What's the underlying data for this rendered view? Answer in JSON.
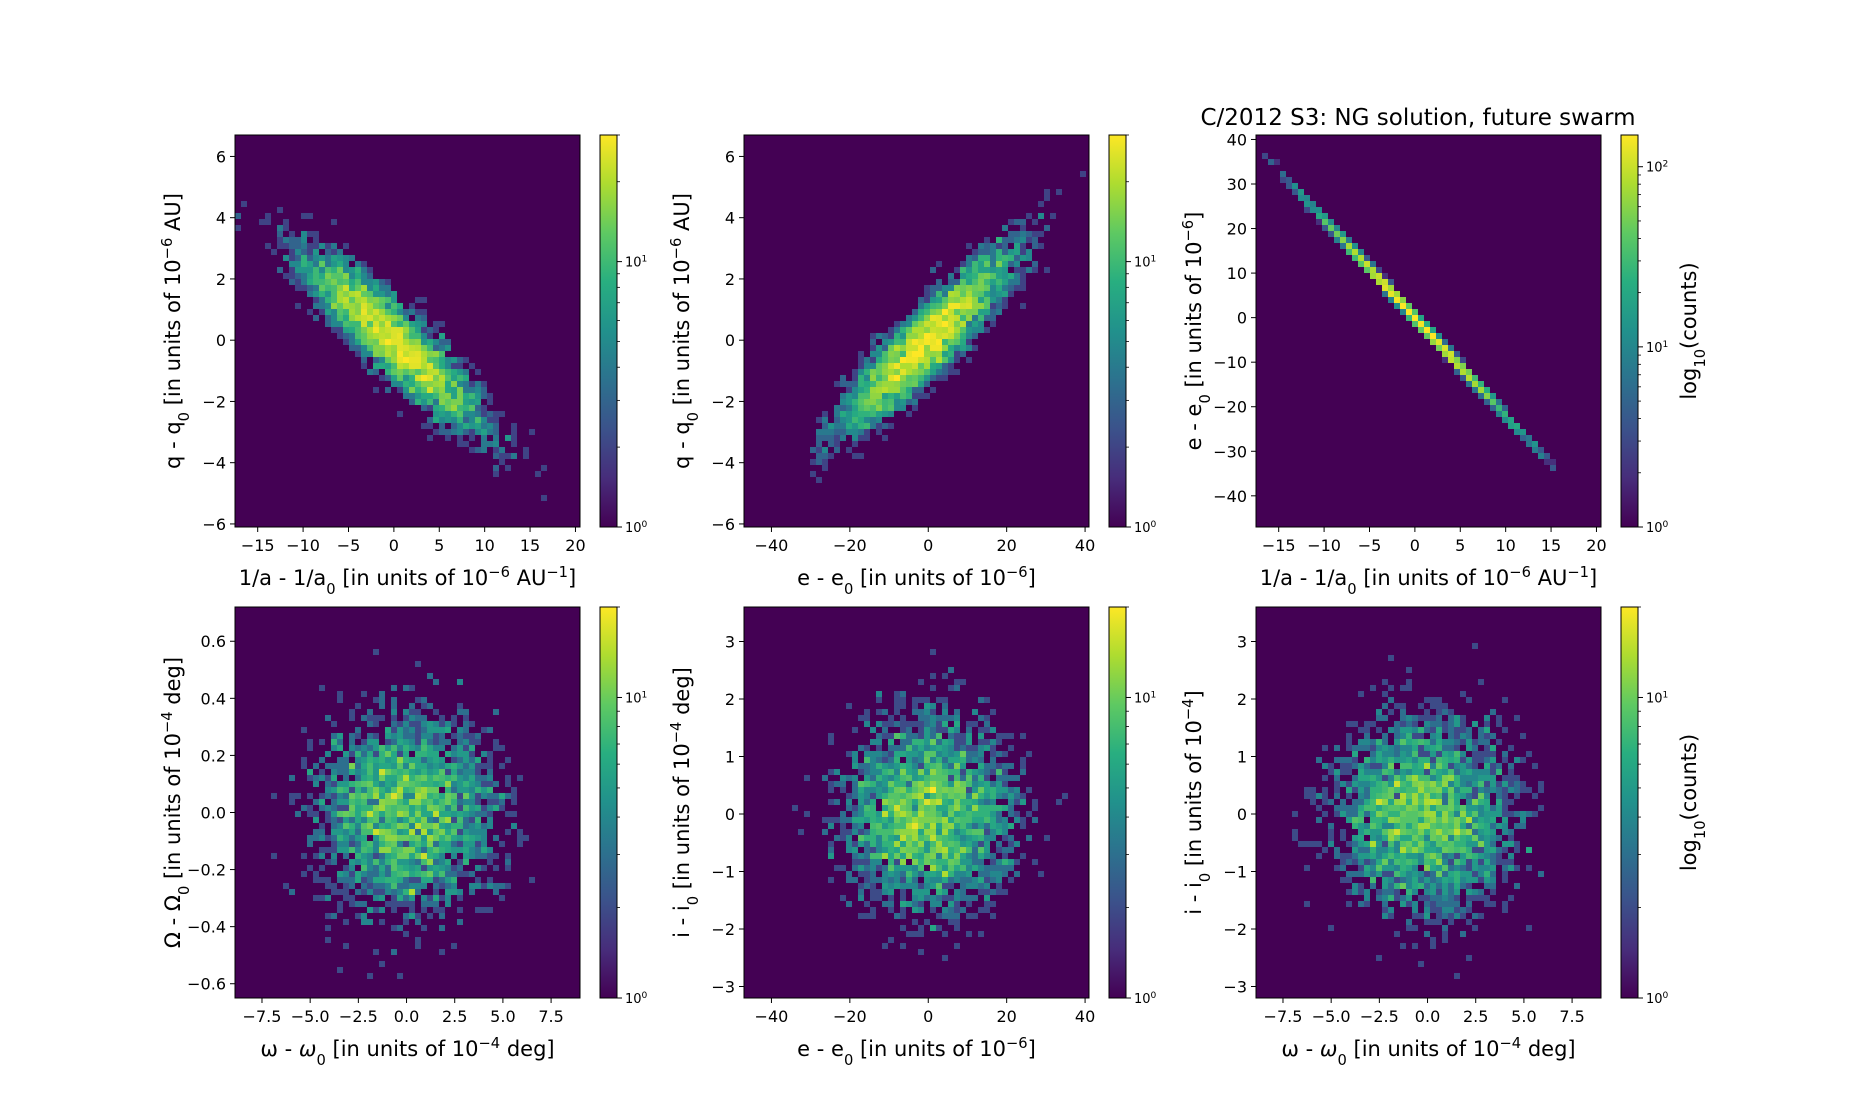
{
  "figure_title": "C/2012 S3: NG solution, future swarm",
  "colorbar_label": "log10(counts)",
  "chart_data": [
    {
      "type": "heatmap",
      "kind": "ellipse",
      "xlabel": "1/a - 1/a0 [in units of 10^-6 AU^-1]",
      "ylabel": "q - q0 [in units of 10^-6 AU]",
      "xlim": [
        -17.5,
        20.5
      ],
      "ylim": [
        -6.1,
        6.7
      ],
      "xticks": [
        -15,
        -10,
        -5,
        0,
        5,
        10,
        15,
        20
      ],
      "xtick_labels": [
        "−15",
        "−10",
        "−5",
        "0",
        "5",
        "10",
        "15",
        "20"
      ],
      "yticks": [
        -6,
        -4,
        -2,
        0,
        2,
        4,
        6
      ],
      "ytick_labels": [
        "−6",
        "−4",
        "−2",
        "0",
        "2",
        "4",
        "6"
      ],
      "density": {
        "center": [
          0,
          0
        ],
        "sigma_x": 5.5,
        "sigma_y": 1.6,
        "correlation": -0.9,
        "n_points": 5000
      },
      "colorbar": {
        "scale": "log",
        "max": 30,
        "ticks": [
          1,
          10
        ],
        "tick_labels": [
          "10^0",
          "10^1"
        ],
        "show_label": false
      }
    },
    {
      "type": "heatmap",
      "kind": "ellipse",
      "xlabel": "e - e0 [in units of 10^-6]",
      "ylabel": "q - q0 [in units of 10^-6 AU]",
      "xlim": [
        -47,
        41
      ],
      "ylim": [
        -6.1,
        6.7
      ],
      "xticks": [
        -40,
        -20,
        0,
        20,
        40
      ],
      "xtick_labels": [
        "−40",
        "−20",
        "0",
        "20",
        "40"
      ],
      "yticks": [
        -6,
        -4,
        -2,
        0,
        2,
        4,
        6
      ],
      "ytick_labels": [
        "−6",
        "−4",
        "−2",
        "0",
        "2",
        "4",
        "6"
      ],
      "density": {
        "center": [
          0,
          0
        ],
        "sigma_x": 12,
        "sigma_y": 1.6,
        "correlation": 0.9,
        "n_points": 5000
      },
      "colorbar": {
        "scale": "log",
        "max": 30,
        "ticks": [
          1,
          10
        ],
        "tick_labels": [
          "10^0",
          "10^1"
        ],
        "show_label": false
      }
    },
    {
      "type": "heatmap",
      "kind": "line",
      "title": "C/2012 S3: NG solution, future swarm",
      "xlabel": "1/a - 1/a0 [in units of 10^-6 AU^-1]",
      "ylabel": "e - e0 [in units of 10^-6]",
      "xlim": [
        -17.5,
        20.5
      ],
      "ylim": [
        -47,
        41
      ],
      "xticks": [
        -15,
        -10,
        -5,
        0,
        5,
        10,
        15,
        20
      ],
      "xtick_labels": [
        "−15",
        "−10",
        "−5",
        "0",
        "5",
        "10",
        "15",
        "20"
      ],
      "yticks": [
        -40,
        -30,
        -20,
        -10,
        0,
        10,
        20,
        30,
        40
      ],
      "ytick_labels": [
        "−40",
        "−30",
        "−20",
        "−10",
        "0",
        "10",
        "20",
        "30",
        "40"
      ],
      "density": {
        "center": [
          0,
          0
        ],
        "sigma_x": 5.5,
        "slope": -2.2,
        "n_points": 5000
      },
      "colorbar": {
        "scale": "log",
        "max": 150,
        "ticks": [
          1,
          10,
          100
        ],
        "tick_labels": [
          "10^0",
          "10^1",
          "10^2"
        ],
        "show_label": true
      }
    },
    {
      "type": "heatmap",
      "kind": "blob",
      "xlabel": "ω - ω0 [in units of 10^-4 deg]",
      "ylabel": "Ω - Ω0 [in units of 10^-4 deg]",
      "xlim": [
        -8.9,
        9
      ],
      "ylim": [
        -0.65,
        0.72
      ],
      "xticks": [
        -7.5,
        -5,
        -2.5,
        0,
        2.5,
        5,
        7.5
      ],
      "xtick_labels": [
        "−7.5",
        "−5.0",
        "−2.5",
        "0.0",
        "2.5",
        "5.0",
        "7.5"
      ],
      "yticks": [
        -0.6,
        -0.4,
        -0.2,
        0,
        0.2,
        0.4,
        0.6
      ],
      "ytick_labels": [
        "−0.6",
        "−0.4",
        "−0.2",
        "0.0",
        "0.2",
        "0.4",
        "0.6"
      ],
      "density": {
        "center": [
          0,
          0
        ],
        "sigma_x": 2.6,
        "sigma_y": 0.2,
        "correlation": 0,
        "n_points": 5000
      },
      "colorbar": {
        "scale": "log",
        "max": 20,
        "ticks": [
          1,
          10
        ],
        "tick_labels": [
          "10^0",
          "10^1"
        ],
        "show_label": false
      }
    },
    {
      "type": "heatmap",
      "kind": "blob",
      "xlabel": "e - e0 [in units of 10^-6]",
      "ylabel": "i - i0 [in units of 10^-4 deg]",
      "xlim": [
        -47,
        41
      ],
      "ylim": [
        -3.2,
        3.6
      ],
      "xticks": [
        -40,
        -20,
        0,
        20,
        40
      ],
      "xtick_labels": [
        "−40",
        "−20",
        "0",
        "20",
        "40"
      ],
      "yticks": [
        -3,
        -2,
        -1,
        0,
        1,
        2,
        3
      ],
      "ytick_labels": [
        "−3",
        "−2",
        "−1",
        "0",
        "1",
        "2",
        "3"
      ],
      "density": {
        "center": [
          0,
          0
        ],
        "sigma_x": 12,
        "sigma_y": 0.95,
        "correlation": 0,
        "n_points": 5000
      },
      "colorbar": {
        "scale": "log",
        "max": 20,
        "ticks": [
          1,
          10
        ],
        "tick_labels": [
          "10^0",
          "10^1"
        ],
        "show_label": false
      }
    },
    {
      "type": "heatmap",
      "kind": "blob",
      "xlabel": "ω - ω0 [in units of 10^-4 deg]",
      "ylabel": "i - i0 [in units of 10^-4]",
      "xlim": [
        -8.9,
        9
      ],
      "ylim": [
        -3.2,
        3.6
      ],
      "xticks": [
        -7.5,
        -5,
        -2.5,
        0,
        2.5,
        5,
        7.5
      ],
      "xtick_labels": [
        "−7.5",
        "−5.0",
        "−2.5",
        "0.0",
        "2.5",
        "5.0",
        "7.5"
      ],
      "yticks": [
        -3,
        -2,
        -1,
        0,
        1,
        2,
        3
      ],
      "ytick_labels": [
        "−3",
        "−2",
        "−1",
        "0",
        "1",
        "2",
        "3"
      ],
      "density": {
        "center": [
          0,
          0
        ],
        "sigma_x": 2.6,
        "sigma_y": 0.95,
        "correlation": 0,
        "n_points": 5000
      },
      "colorbar": {
        "scale": "log",
        "max": 20,
        "ticks": [
          1,
          10
        ],
        "tick_labels": [
          "10^0",
          "10^1"
        ],
        "show_label": true
      }
    }
  ]
}
